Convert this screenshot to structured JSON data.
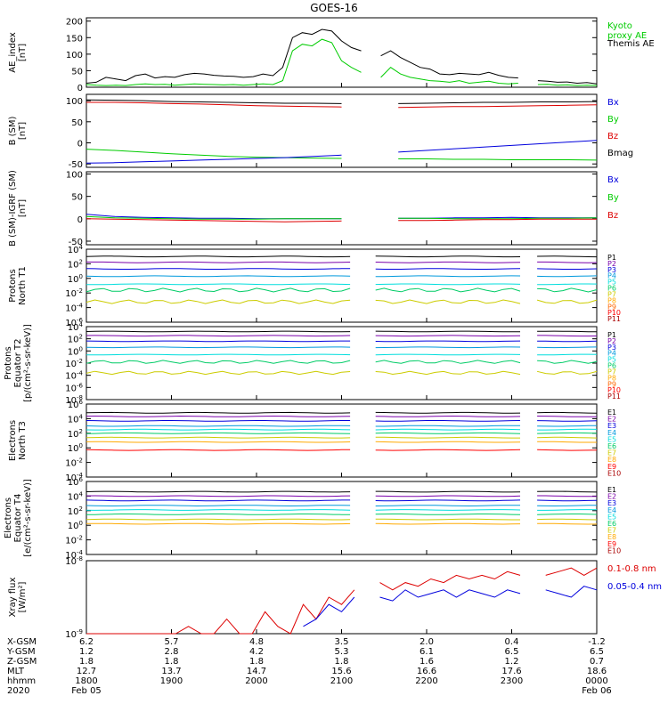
{
  "title": "GOES-16",
  "colors": {
    "black": "#000000",
    "blue": "#0000dd",
    "green": "#00cc00",
    "red": "#dd0000"
  },
  "chart_data": [
    {
      "type": "line",
      "ylabel": "AE_index\n[nT]",
      "yticks": [
        "200",
        "150",
        "100",
        "50",
        "0"
      ],
      "ytick_vals": [
        200,
        150,
        100,
        50,
        0
      ],
      "ylim": [
        0,
        210
      ],
      "legend": [
        {
          "label": "Kyoto\nproxy AE",
          "color": "#00cc00"
        },
        {
          "label": "Themis AE",
          "color": "#000000"
        }
      ],
      "series": [
        {
          "name": "Themis AE",
          "color": "#000000",
          "values": [
            12,
            15,
            30,
            25,
            20,
            35,
            40,
            28,
            32,
            30,
            38,
            42,
            40,
            36,
            34,
            33,
            30,
            32,
            40,
            35,
            60,
            150,
            165,
            160,
            175,
            170,
            140,
            120,
            110,
            100,
            95,
            110,
            90,
            75,
            60,
            55,
            40,
            38,
            42,
            40,
            38,
            45,
            36,
            30,
            28,
            25,
            20,
            18,
            15,
            16,
            12,
            14,
            10
          ]
        },
        {
          "name": "Kyoto proxy AE",
          "color": "#00cc00",
          "values": [
            8,
            6,
            5,
            6,
            5,
            8,
            10,
            8,
            9,
            6,
            8,
            10,
            9,
            8,
            7,
            8,
            6,
            8,
            10,
            8,
            20,
            110,
            130,
            125,
            145,
            135,
            80,
            60,
            45,
            35,
            30,
            60,
            40,
            30,
            25,
            20,
            18,
            15,
            20,
            12,
            15,
            18,
            12,
            10,
            12,
            10,
            8,
            9,
            6,
            7,
            5,
            6,
            5
          ]
        }
      ]
    },
    {
      "type": "line",
      "ylabel": "B (SM)\n[nT]",
      "yticks": [
        "100",
        "50",
        "0",
        "-50"
      ],
      "ytick_vals": [
        100,
        50,
        0,
        -50
      ],
      "ylim": [
        -58,
        115
      ],
      "legend": [
        {
          "label": "Bx",
          "color": "#0000dd"
        },
        {
          "label": "By",
          "color": "#00cc00"
        },
        {
          "label": "Bz",
          "color": "#dd0000"
        },
        {
          "label": "Bmag",
          "color": "#000000"
        }
      ],
      "series": [
        {
          "name": "Bmag",
          "color": "#000000",
          "values": [
            102,
            101,
            100,
            98,
            97,
            96,
            95,
            94,
            94,
            93,
            93,
            93,
            94,
            95,
            96,
            96,
            97,
            97,
            98
          ]
        },
        {
          "name": "Bz",
          "color": "#dd0000",
          "values": [
            96,
            96,
            95,
            93,
            92,
            90,
            88,
            87,
            86,
            85,
            84,
            84,
            85,
            86,
            86,
            87,
            88,
            89,
            90
          ]
        },
        {
          "name": "By",
          "color": "#00cc00",
          "values": [
            -15,
            -18,
            -22,
            -26,
            -29,
            -32,
            -34,
            -35,
            -36,
            -37,
            -38,
            -38,
            -38,
            -39,
            -39,
            -40,
            -40,
            -40,
            -41
          ]
        },
        {
          "name": "Bx",
          "color": "#0000dd",
          "values": [
            -48,
            -47,
            -45,
            -43,
            -41,
            -39,
            -37,
            -35,
            -32,
            -29,
            -26,
            -22,
            -18,
            -14,
            -10,
            -6,
            -2,
            2,
            6
          ]
        }
      ]
    },
    {
      "type": "line",
      "ylabel": "B (SM)-IGRF (SM)\n[nT]",
      "yticks": [
        "100",
        "50",
        "0",
        "-50"
      ],
      "ytick_vals": [
        100,
        50,
        0,
        -50
      ],
      "ylim": [
        -58,
        105
      ],
      "legend": [
        {
          "label": "Bx",
          "color": "#0000dd"
        },
        {
          "label": "By",
          "color": "#00cc00"
        },
        {
          "label": "Bz",
          "color": "#dd0000"
        }
      ],
      "series": [
        {
          "name": "Bx",
          "color": "#0000dd",
          "values": [
            10,
            5,
            3,
            2,
            1,
            1,
            0,
            0,
            0,
            0,
            0,
            1,
            1,
            2,
            2,
            3,
            2,
            2,
            2
          ]
        },
        {
          "name": "By",
          "color": "#00cc00",
          "values": [
            5,
            2,
            1,
            0,
            -1,
            -1,
            -1,
            0,
            0,
            0,
            1,
            1,
            1,
            0,
            0,
            0,
            1,
            1,
            2
          ]
        },
        {
          "name": "Bz",
          "color": "#dd0000",
          "values": [
            0,
            -1,
            -2,
            -3,
            -4,
            -5,
            -6,
            -7,
            -6,
            -5,
            -5,
            -4,
            -4,
            -3,
            -2,
            -2,
            -1,
            -1,
            -1
          ]
        }
      ]
    },
    {
      "type": "line",
      "ylabel": "Protons\nNorth T1",
      "scale": "log",
      "yticks": [
        "10^4",
        "10^2",
        "10^0",
        "10^-2",
        "10^-4",
        "10^-6"
      ],
      "ytick_vals": [
        4,
        2,
        0,
        -2,
        -4,
        -6
      ],
      "ylim": [
        -6,
        4
      ],
      "legend": [
        {
          "label": "P1",
          "color": "#000000"
        },
        {
          "label": "P2",
          "color": "#7a00aa"
        },
        {
          "label": "P3",
          "color": "#0000dd"
        },
        {
          "label": "P4",
          "color": "#0099dd"
        },
        {
          "label": "P5",
          "color": "#00dddd"
        },
        {
          "label": "P6",
          "color": "#00cc66"
        },
        {
          "label": "P7",
          "color": "#cccc00"
        },
        {
          "label": "P8",
          "color": "#ffaa00"
        },
        {
          "label": "P9",
          "color": "#ff6600"
        },
        {
          "label": "P10",
          "color": "#ff0000"
        },
        {
          "label": "P11",
          "color": "#aa0000"
        }
      ],
      "series": [
        {
          "name": "P1",
          "color": "#000000",
          "level": 3.0
        },
        {
          "name": "P2",
          "color": "#7a00aa",
          "level": 2.2
        },
        {
          "name": "P3",
          "color": "#0000dd",
          "level": 1.3
        },
        {
          "name": "P4",
          "color": "#0099dd",
          "level": 0.3
        },
        {
          "name": "P5",
          "color": "#00dddd",
          "level": -0.8
        },
        {
          "name": "P6",
          "color": "#00cc66",
          "level": -1.6
        },
        {
          "name": "P7",
          "color": "#cccc00",
          "level": -3.2
        }
      ]
    },
    {
      "type": "line",
      "ylabel": "Protons\nEquator T2\n[p/(cm²-s-sr-keV)]",
      "scale": "log",
      "yticks": [
        "10^4",
        "10^2",
        "10^0",
        "10^-2",
        "10^-4",
        "10^-6",
        "10^-8"
      ],
      "ytick_vals": [
        4,
        2,
        0,
        -2,
        -4,
        -6,
        -8
      ],
      "ylim": [
        -8,
        4
      ],
      "legend": [
        {
          "label": "P1",
          "color": "#000000"
        },
        {
          "label": "P2",
          "color": "#7a00aa"
        },
        {
          "label": "P3",
          "color": "#0000dd"
        },
        {
          "label": "P4",
          "color": "#0099dd"
        },
        {
          "label": "P5",
          "color": "#00dddd"
        },
        {
          "label": "P6",
          "color": "#00cc66"
        },
        {
          "label": "P7",
          "color": "#cccc00"
        },
        {
          "label": "P8",
          "color": "#ffaa00"
        },
        {
          "label": "P9",
          "color": "#ff6600"
        },
        {
          "label": "P10",
          "color": "#ff0000"
        },
        {
          "label": "P11",
          "color": "#aa0000"
        }
      ],
      "series": [
        {
          "name": "P1",
          "color": "#000000",
          "level": 3.2
        },
        {
          "name": "P2",
          "color": "#7a00aa",
          "level": 2.5
        },
        {
          "name": "P3",
          "color": "#0000dd",
          "level": 1.6
        },
        {
          "name": "P4",
          "color": "#0099dd",
          "level": 0.6
        },
        {
          "name": "P5",
          "color": "#00dddd",
          "level": -0.6
        },
        {
          "name": "P6",
          "color": "#00cc66",
          "level": -1.8
        },
        {
          "name": "P7",
          "color": "#cccc00",
          "level": -3.6
        }
      ]
    },
    {
      "type": "line",
      "ylabel": "Electrons\nNorth T3",
      "scale": "log",
      "yticks": [
        "10^6",
        "10^4",
        "10^2",
        "10^0",
        "10^-2",
        "10^-4"
      ],
      "ytick_vals": [
        6,
        4,
        2,
        0,
        -2,
        -4
      ],
      "ylim": [
        -4,
        6
      ],
      "legend": [
        {
          "label": "E1",
          "color": "#000000"
        },
        {
          "label": "E2",
          "color": "#7a00aa"
        },
        {
          "label": "E3",
          "color": "#0000dd"
        },
        {
          "label": "E4",
          "color": "#0099dd"
        },
        {
          "label": "E5",
          "color": "#00dddd"
        },
        {
          "label": "E6",
          "color": "#00cc66"
        },
        {
          "label": "E7",
          "color": "#cccc00"
        },
        {
          "label": "E8",
          "color": "#ffaa00"
        },
        {
          "label": "E9",
          "color": "#ff0000"
        },
        {
          "label": "E10",
          "color": "#aa0000"
        }
      ],
      "series": [
        {
          "name": "E1",
          "color": "#000000",
          "level": 4.8
        },
        {
          "name": "E2",
          "color": "#7a00aa",
          "level": 4.3
        },
        {
          "name": "E3",
          "color": "#0000dd",
          "level": 3.7
        },
        {
          "name": "E4",
          "color": "#0099dd",
          "level": 3.0
        },
        {
          "name": "E5",
          "color": "#00dddd",
          "level": 2.5
        },
        {
          "name": "E6",
          "color": "#00cc66",
          "level": 2.0
        },
        {
          "name": "E7",
          "color": "#cccc00",
          "level": 1.4
        },
        {
          "name": "E8",
          "color": "#ffaa00",
          "level": 0.8
        },
        {
          "name": "E9",
          "color": "#ff0000",
          "level": -0.3
        }
      ]
    },
    {
      "type": "line",
      "ylabel": "Electrons\nEquator T4\n[e/(cm²-s-sr-keV)]",
      "scale": "log",
      "yticks": [
        "10^6",
        "10^4",
        "10^2",
        "10^0",
        "10^-2",
        "10^-4"
      ],
      "ytick_vals": [
        6,
        4,
        2,
        0,
        -2,
        -4
      ],
      "ylim": [
        -4,
        6
      ],
      "legend": [
        {
          "label": "E1",
          "color": "#000000"
        },
        {
          "label": "E2",
          "color": "#7a00aa"
        },
        {
          "label": "E3",
          "color": "#0000dd"
        },
        {
          "label": "E4",
          "color": "#0099dd"
        },
        {
          "label": "E5",
          "color": "#00dddd"
        },
        {
          "label": "E6",
          "color": "#00cc66"
        },
        {
          "label": "E7",
          "color": "#cccc00"
        },
        {
          "label": "E8",
          "color": "#ffaa00"
        },
        {
          "label": "E9",
          "color": "#ff0000"
        },
        {
          "label": "E10",
          "color": "#aa0000"
        }
      ],
      "series": [
        {
          "name": "E1",
          "color": "#000000",
          "level": 4.6
        },
        {
          "name": "E2",
          "color": "#7a00aa",
          "level": 4.0
        },
        {
          "name": "E3",
          "color": "#0000dd",
          "level": 3.4
        },
        {
          "name": "E4",
          "color": "#0099dd",
          "level": 2.7
        },
        {
          "name": "E5",
          "color": "#00dddd",
          "level": 2.1
        },
        {
          "name": "E6",
          "color": "#00cc66",
          "level": 1.5
        },
        {
          "name": "E7",
          "color": "#cccc00",
          "level": 0.8
        },
        {
          "name": "E8",
          "color": "#ffaa00",
          "level": 0.2
        }
      ]
    },
    {
      "type": "line",
      "ylabel": "Xray flux\n[W/m²]",
      "scale": "log",
      "yticks": [
        "10^-8",
        "10^-9"
      ],
      "ytick_vals": [
        -8,
        -9
      ],
      "ylim": [
        -9,
        -8
      ],
      "legend": [
        {
          "label": "0.1-0.8 nm",
          "color": "#dd0000"
        },
        {
          "label": "0.05-0.4 nm",
          "color": "#0000dd"
        }
      ],
      "series": [
        {
          "name": "0.1-0.8 nm",
          "color": "#dd0000",
          "values": [
            -9,
            -9,
            -9,
            -9,
            -9,
            -9,
            -9,
            -9.0,
            -8.9,
            -9,
            -9,
            -8.8,
            -9,
            -9,
            -8.7,
            -8.9,
            -9,
            -8.6,
            -8.8,
            -8.5,
            -8.6,
            -8.4,
            -8.5,
            -8.3,
            -8.4,
            -8.3,
            -8.35,
            -8.25,
            -8.3,
            -8.2,
            -8.25,
            -8.2,
            -8.25,
            -8.15,
            -8.2,
            -8.1,
            -8.2,
            -8.15,
            -8.1,
            -8.2,
            -8.1
          ]
        },
        {
          "name": "0.05-0.4 nm",
          "color": "#0000dd",
          "values": [
            null,
            null,
            null,
            null,
            null,
            null,
            null,
            null,
            null,
            null,
            null,
            null,
            null,
            null,
            null,
            null,
            null,
            -8.9,
            -8.8,
            -8.6,
            -8.7,
            -8.5,
            -8.6,
            -8.5,
            -8.55,
            -8.4,
            -8.5,
            -8.45,
            -8.4,
            -8.5,
            -8.4,
            -8.45,
            -8.5,
            -8.4,
            -8.45,
            -8.5,
            -8.4,
            -8.45,
            -8.5,
            -8.35,
            -8.4
          ]
        }
      ]
    }
  ],
  "xaxis": {
    "rows": [
      {
        "label": "X-GSM",
        "values": [
          "6.2",
          "5.7",
          "4.8",
          "3.5",
          "2.0",
          "0.4",
          "-1.2"
        ]
      },
      {
        "label": "Y-GSM",
        "values": [
          "1.2",
          "2.8",
          "4.2",
          "5.3",
          "6.1",
          "6.5",
          "6.5"
        ]
      },
      {
        "label": "Z-GSM",
        "values": [
          "1.8",
          "1.8",
          "1.8",
          "1.8",
          "1.6",
          "1.2",
          "0.7"
        ]
      },
      {
        "label": "MLT",
        "values": [
          "12.7",
          "13.7",
          "14.7",
          "15.6",
          "16.6",
          "17.6",
          "18.6"
        ]
      },
      {
        "label": "hhmm",
        "values": [
          "1800",
          "1900",
          "2000",
          "2100",
          "2200",
          "2300",
          "0000"
        ]
      },
      {
        "label": "2020",
        "values": [
          "Feb 05",
          "",
          "",
          "",
          "",
          "",
          "Feb 06"
        ]
      }
    ]
  }
}
